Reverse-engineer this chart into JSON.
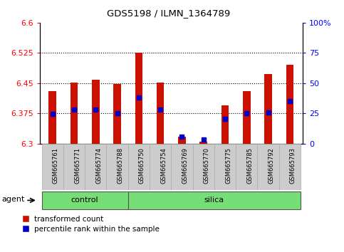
{
  "title": "GDS5198 / ILMN_1364789",
  "samples": [
    "GSM665761",
    "GSM665771",
    "GSM665774",
    "GSM665788",
    "GSM665750",
    "GSM665754",
    "GSM665769",
    "GSM665770",
    "GSM665775",
    "GSM665785",
    "GSM665792",
    "GSM665793"
  ],
  "groups": [
    "control",
    "control",
    "control",
    "control",
    "silica",
    "silica",
    "silica",
    "silica",
    "silica",
    "silica",
    "silica",
    "silica"
  ],
  "red_values": [
    6.43,
    6.452,
    6.458,
    6.448,
    6.525,
    6.452,
    6.318,
    6.305,
    6.395,
    6.43,
    6.473,
    6.495
  ],
  "blue_values": [
    6.374,
    6.384,
    6.384,
    6.376,
    6.415,
    6.385,
    6.318,
    6.31,
    6.362,
    6.375,
    6.378,
    6.405
  ],
  "y_min": 6.3,
  "y_max": 6.6,
  "y_ticks": [
    6.3,
    6.375,
    6.45,
    6.525,
    6.6
  ],
  "y_tick_labels": [
    "6.3",
    "6.375",
    "6.45",
    "6.525",
    "6.6"
  ],
  "right_y_ticks": [
    0,
    25,
    50,
    75,
    100
  ],
  "right_y_labels": [
    "0",
    "25",
    "50",
    "75",
    "100%"
  ],
  "grid_lines": [
    6.375,
    6.45,
    6.525
  ],
  "bar_bottom": 6.3,
  "bar_color": "#cc1100",
  "blue_color": "#0000cc",
  "background_color": "#ffffff",
  "agent_label": "agent",
  "control_label": "control",
  "silica_label": "silica",
  "legend_red": "transformed count",
  "legend_blue": "percentile rank within the sample",
  "group_color": "#77dd77",
  "tick_bg_color": "#cccccc",
  "n_control": 4,
  "n_silica": 8,
  "bar_width": 0.35
}
